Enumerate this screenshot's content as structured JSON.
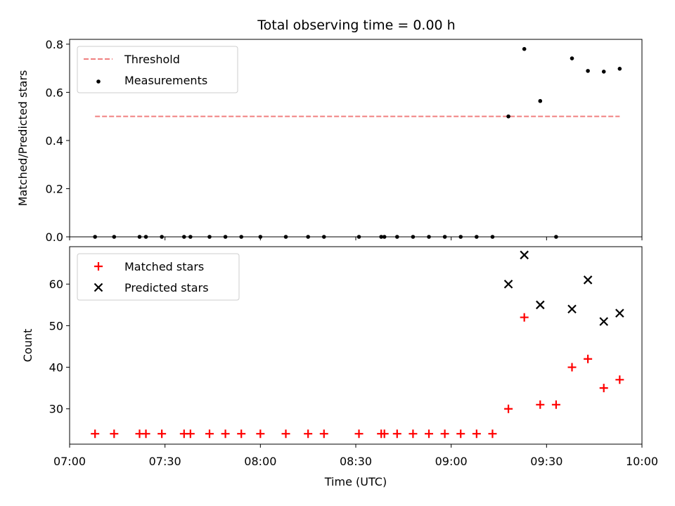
{
  "chart_data": [
    {
      "type": "scatter",
      "title": "Total observing time = 0.00 h",
      "xlabel": "",
      "ylabel": "Matched/Predicted stars",
      "x_range": [
        "07:00",
        "10:00"
      ],
      "ylim": [
        0,
        0.82
      ],
      "yticks": [
        "0.0",
        "0.2",
        "0.4",
        "0.6",
        "0.8"
      ],
      "grid": false,
      "legend_position": "top-left",
      "threshold": {
        "name": "Threshold",
        "value": 0.5,
        "x_start": "07:08",
        "x_end": "09:53",
        "color": "#f08080",
        "style": "dashed"
      },
      "series": [
        {
          "name": "Measurements",
          "marker": "dot",
          "color": "#000000",
          "points": [
            [
              "07:08",
              0.0
            ],
            [
              "07:14",
              0.0
            ],
            [
              "07:22",
              0.0
            ],
            [
              "07:24",
              0.0
            ],
            [
              "07:29",
              0.0
            ],
            [
              "07:36",
              0.0
            ],
            [
              "07:38",
              0.0
            ],
            [
              "07:44",
              0.0
            ],
            [
              "07:49",
              0.0
            ],
            [
              "07:54",
              0.0
            ],
            [
              "08:00",
              0.0
            ],
            [
              "08:08",
              0.0
            ],
            [
              "08:15",
              0.0
            ],
            [
              "08:20",
              0.0
            ],
            [
              "08:31",
              0.0
            ],
            [
              "08:38",
              0.0
            ],
            [
              "08:39",
              0.0
            ],
            [
              "08:43",
              0.0
            ],
            [
              "08:48",
              0.0
            ],
            [
              "08:53",
              0.0
            ],
            [
              "08:58",
              0.0
            ],
            [
              "09:03",
              0.0
            ],
            [
              "09:08",
              0.0
            ],
            [
              "09:13",
              0.0
            ],
            [
              "09:18",
              0.5
            ],
            [
              "09:23",
              0.78
            ],
            [
              "09:28",
              0.564
            ],
            [
              "09:33",
              0.0
            ],
            [
              "09:38",
              0.741
            ],
            [
              "09:43",
              0.689
            ],
            [
              "09:48",
              0.686
            ],
            [
              "09:53",
              0.698
            ]
          ]
        }
      ]
    },
    {
      "type": "scatter",
      "title": "",
      "xlabel": "Time (UTC)",
      "ylabel": "Count",
      "x_range": [
        "07:00",
        "10:00"
      ],
      "xticks": [
        "07:00",
        "07:30",
        "08:00",
        "08:30",
        "09:00",
        "09:30",
        "10:00"
      ],
      "ylim": [
        21.5,
        69
      ],
      "yticks": [
        "30",
        "40",
        "50",
        "60"
      ],
      "grid": false,
      "legend_position": "top-left",
      "series": [
        {
          "name": "Matched stars",
          "marker": "plus",
          "color": "#ff0000",
          "points": [
            [
              "07:08",
              24
            ],
            [
              "07:14",
              24
            ],
            [
              "07:22",
              24
            ],
            [
              "07:24",
              24
            ],
            [
              "07:29",
              24
            ],
            [
              "07:36",
              24
            ],
            [
              "07:38",
              24
            ],
            [
              "07:44",
              24
            ],
            [
              "07:49",
              24
            ],
            [
              "07:54",
              24
            ],
            [
              "08:00",
              24
            ],
            [
              "08:08",
              24
            ],
            [
              "08:15",
              24
            ],
            [
              "08:20",
              24
            ],
            [
              "08:31",
              24
            ],
            [
              "08:38",
              24
            ],
            [
              "08:39",
              24
            ],
            [
              "08:43",
              24
            ],
            [
              "08:48",
              24
            ],
            [
              "08:53",
              24
            ],
            [
              "08:58",
              24
            ],
            [
              "09:03",
              24
            ],
            [
              "09:08",
              24
            ],
            [
              "09:13",
              24
            ],
            [
              "09:18",
              30
            ],
            [
              "09:23",
              52
            ],
            [
              "09:28",
              31
            ],
            [
              "09:33",
              31
            ],
            [
              "09:38",
              40
            ],
            [
              "09:43",
              42
            ],
            [
              "09:48",
              35
            ],
            [
              "09:53",
              37
            ]
          ]
        },
        {
          "name": "Predicted stars",
          "marker": "cross",
          "color": "#000000",
          "points": [
            [
              "09:18",
              60
            ],
            [
              "09:23",
              67
            ],
            [
              "09:28",
              55
            ],
            [
              "09:38",
              54
            ],
            [
              "09:43",
              61
            ],
            [
              "09:48",
              51
            ],
            [
              "09:53",
              53
            ]
          ]
        }
      ]
    }
  ]
}
